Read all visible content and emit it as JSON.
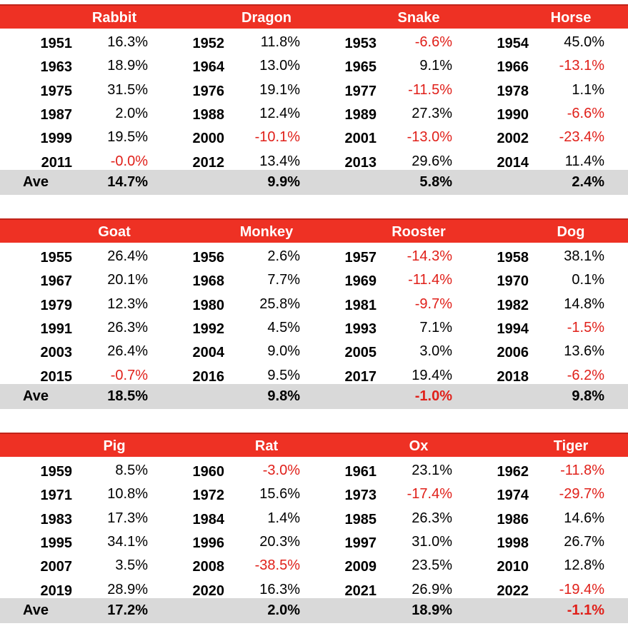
{
  "ave_label": "Ave",
  "colors": {
    "header_bg": "#ee3124",
    "negative": "#e0201a",
    "ave_bg": "#d9d9d9"
  },
  "blocks": [
    {
      "signs": [
        {
          "name": "Rabbit",
          "rows": [
            [
              "1951",
              "16.3%"
            ],
            [
              "1963",
              "18.9%"
            ],
            [
              "1975",
              "31.5%"
            ],
            [
              "1987",
              "2.0%"
            ],
            [
              "1999",
              "19.5%"
            ],
            [
              "2011",
              "-0.0%"
            ]
          ],
          "ave": "14.7%"
        },
        {
          "name": "Dragon",
          "rows": [
            [
              "1952",
              "11.8%"
            ],
            [
              "1964",
              "13.0%"
            ],
            [
              "1976",
              "19.1%"
            ],
            [
              "1988",
              "12.4%"
            ],
            [
              "2000",
              "-10.1%"
            ],
            [
              "2012",
              "13.4%"
            ]
          ],
          "ave": "9.9%"
        },
        {
          "name": "Snake",
          "rows": [
            [
              "1953",
              "-6.6%"
            ],
            [
              "1965",
              "9.1%"
            ],
            [
              "1977",
              "-11.5%"
            ],
            [
              "1989",
              "27.3%"
            ],
            [
              "2001",
              "-13.0%"
            ],
            [
              "2013",
              "29.6%"
            ]
          ],
          "ave": "5.8%"
        },
        {
          "name": "Horse",
          "rows": [
            [
              "1954",
              "45.0%"
            ],
            [
              "1966",
              "-13.1%"
            ],
            [
              "1978",
              "1.1%"
            ],
            [
              "1990",
              "-6.6%"
            ],
            [
              "2002",
              "-23.4%"
            ],
            [
              "2014",
              "11.4%"
            ]
          ],
          "ave": "2.4%"
        }
      ]
    },
    {
      "signs": [
        {
          "name": "Goat",
          "rows": [
            [
              "1955",
              "26.4%"
            ],
            [
              "1967",
              "20.1%"
            ],
            [
              "1979",
              "12.3%"
            ],
            [
              "1991",
              "26.3%"
            ],
            [
              "2003",
              "26.4%"
            ],
            [
              "2015",
              "-0.7%"
            ]
          ],
          "ave": "18.5%"
        },
        {
          "name": "Monkey",
          "rows": [
            [
              "1956",
              "2.6%"
            ],
            [
              "1968",
              "7.7%"
            ],
            [
              "1980",
              "25.8%"
            ],
            [
              "1992",
              "4.5%"
            ],
            [
              "2004",
              "9.0%"
            ],
            [
              "2016",
              "9.5%"
            ]
          ],
          "ave": "9.8%"
        },
        {
          "name": "Rooster",
          "rows": [
            [
              "1957",
              "-14.3%"
            ],
            [
              "1969",
              "-11.4%"
            ],
            [
              "1981",
              "-9.7%"
            ],
            [
              "1993",
              "7.1%"
            ],
            [
              "2005",
              "3.0%"
            ],
            [
              "2017",
              "19.4%"
            ]
          ],
          "ave": "-1.0%"
        },
        {
          "name": "Dog",
          "rows": [
            [
              "1958",
              "38.1%"
            ],
            [
              "1970",
              "0.1%"
            ],
            [
              "1982",
              "14.8%"
            ],
            [
              "1994",
              "-1.5%"
            ],
            [
              "2006",
              "13.6%"
            ],
            [
              "2018",
              "-6.2%"
            ]
          ],
          "ave": "9.8%"
        }
      ]
    },
    {
      "signs": [
        {
          "name": "Pig",
          "rows": [
            [
              "1959",
              "8.5%"
            ],
            [
              "1971",
              "10.8%"
            ],
            [
              "1983",
              "17.3%"
            ],
            [
              "1995",
              "34.1%"
            ],
            [
              "2007",
              "3.5%"
            ],
            [
              "2019",
              "28.9%"
            ]
          ],
          "ave": "17.2%"
        },
        {
          "name": "Rat",
          "rows": [
            [
              "1960",
              "-3.0%"
            ],
            [
              "1972",
              "15.6%"
            ],
            [
              "1984",
              "1.4%"
            ],
            [
              "1996",
              "20.3%"
            ],
            [
              "2008",
              "-38.5%"
            ],
            [
              "2020",
              "16.3%"
            ]
          ],
          "ave": "2.0%"
        },
        {
          "name": "Ox",
          "rows": [
            [
              "1961",
              "23.1%"
            ],
            [
              "1973",
              "-17.4%"
            ],
            [
              "1985",
              "26.3%"
            ],
            [
              "1997",
              "31.0%"
            ],
            [
              "2009",
              "23.5%"
            ],
            [
              "2021",
              "26.9%"
            ]
          ],
          "ave": "18.9%"
        },
        {
          "name": "Tiger",
          "rows": [
            [
              "1962",
              "-11.8%"
            ],
            [
              "1974",
              "-29.7%"
            ],
            [
              "1986",
              "14.6%"
            ],
            [
              "1998",
              "26.7%"
            ],
            [
              "2010",
              "12.8%"
            ],
            [
              "2022",
              "-19.4%"
            ]
          ],
          "ave": "-1.1%"
        }
      ]
    }
  ]
}
